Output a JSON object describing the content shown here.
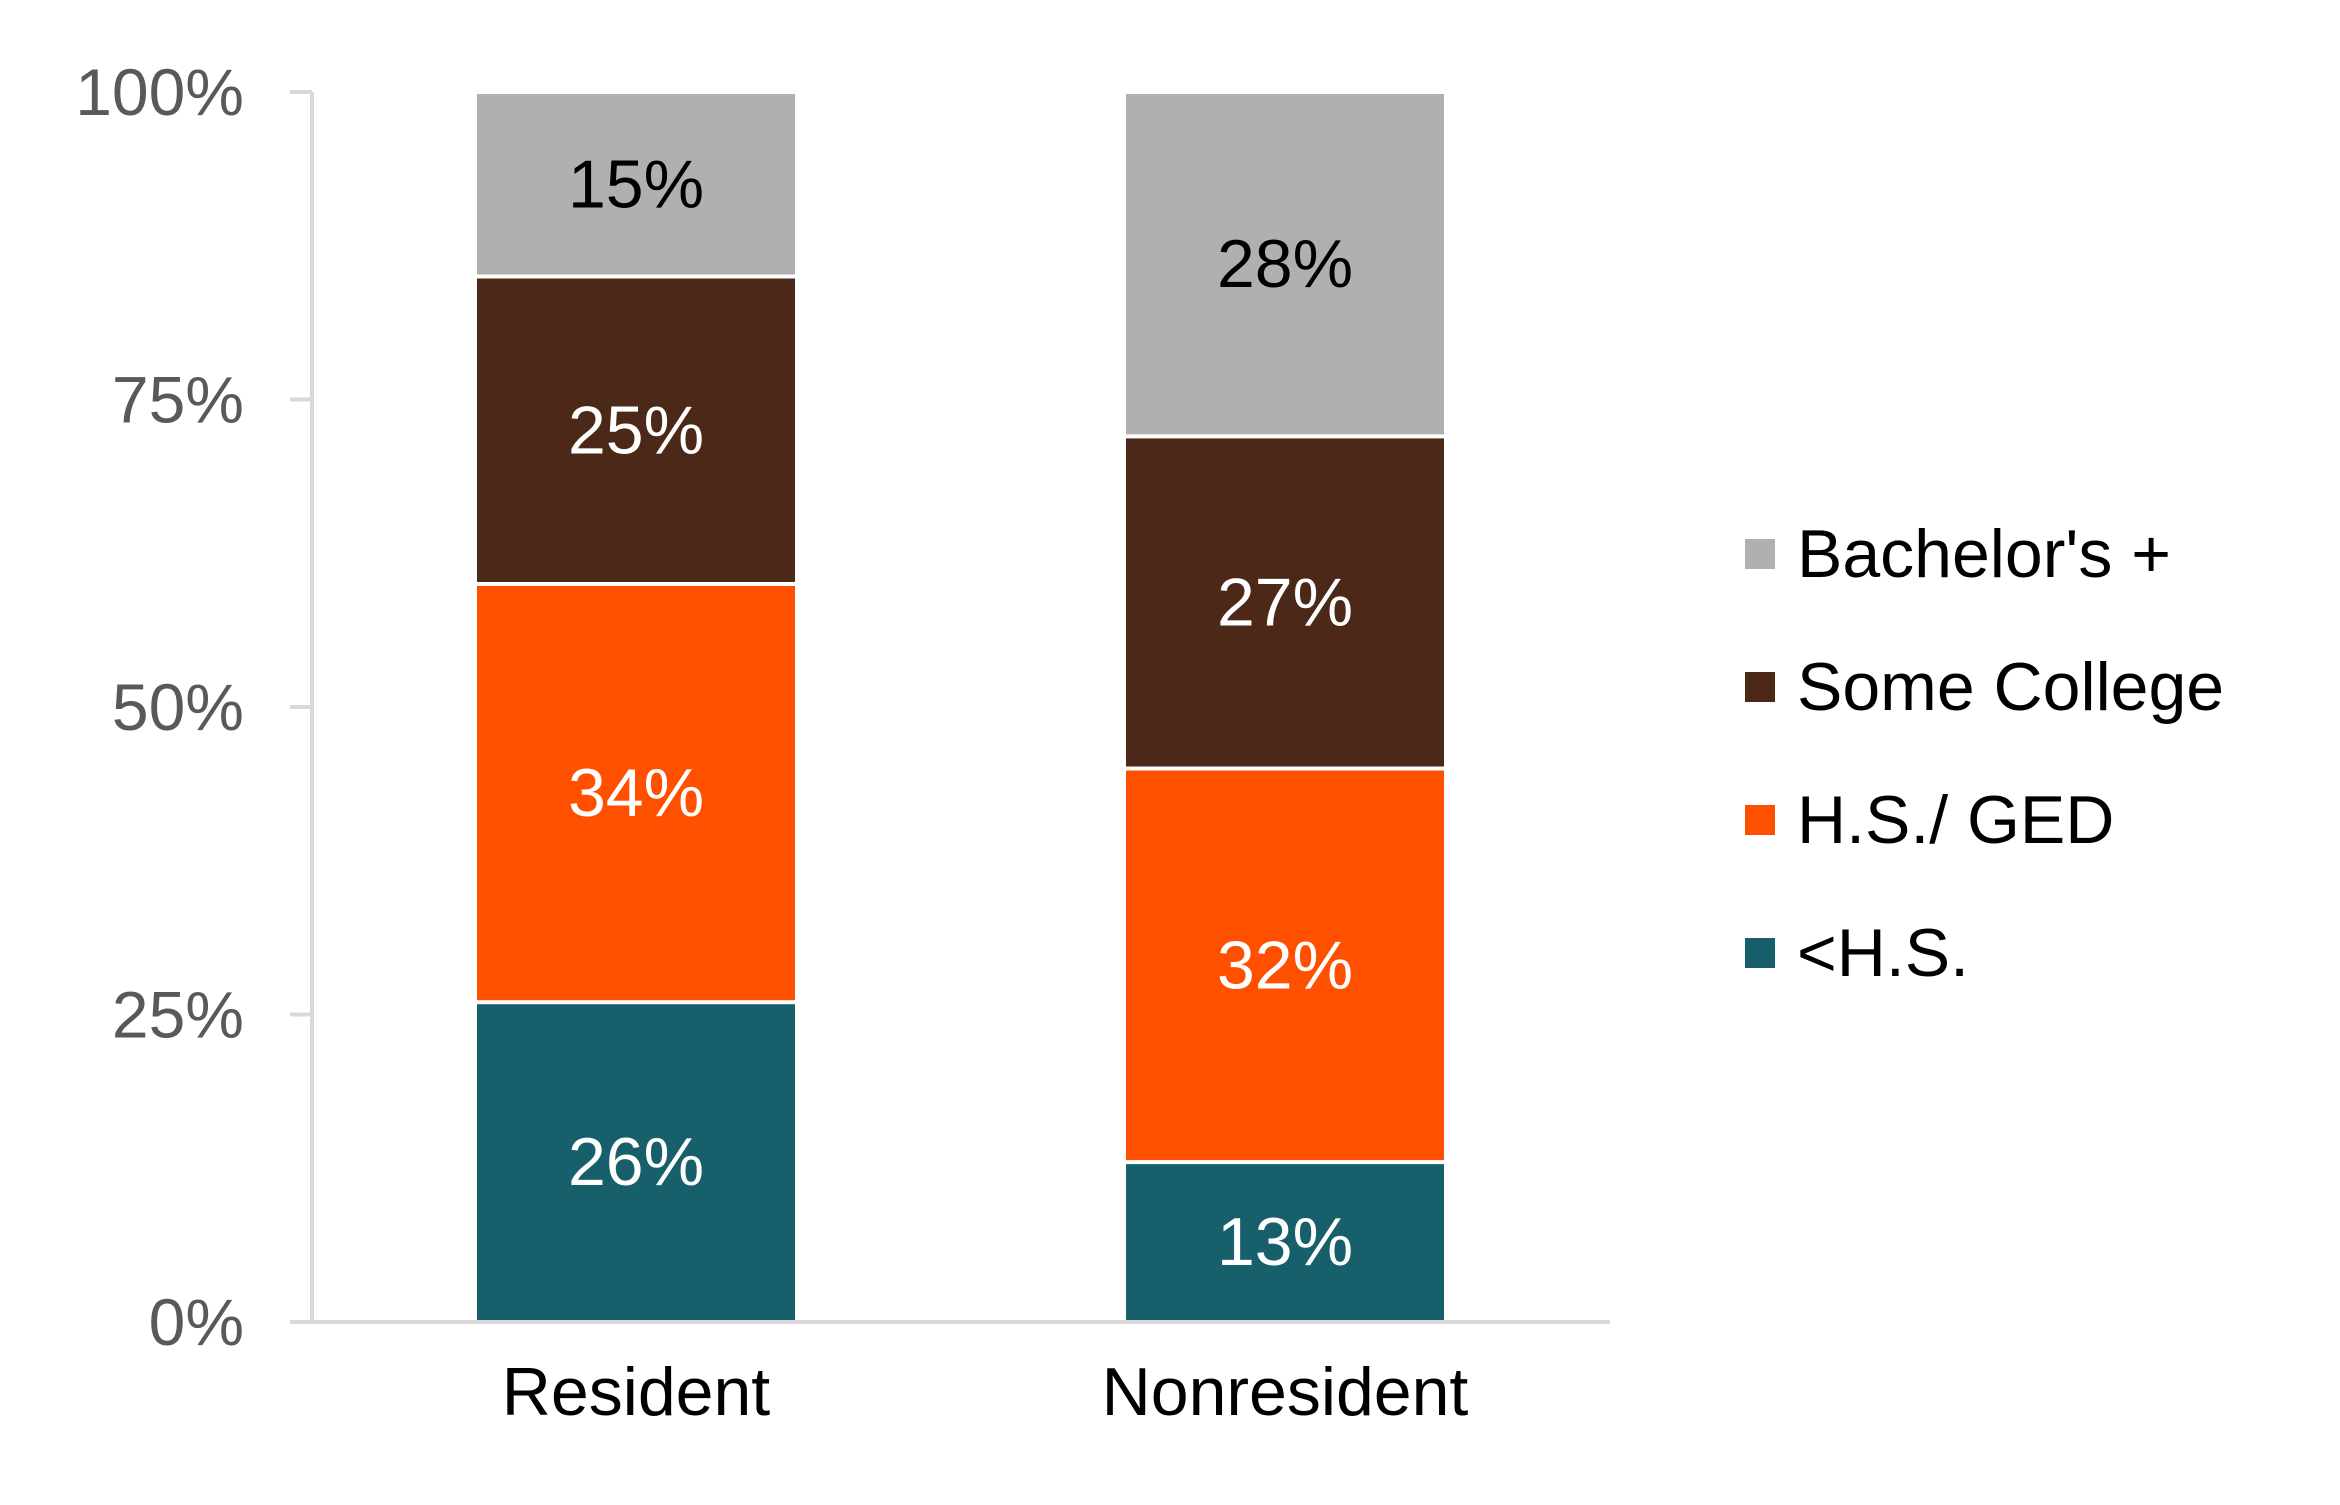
{
  "chart_data": {
    "type": "bar",
    "stacked": true,
    "title": "",
    "xlabel": "",
    "ylabel": "",
    "categories": [
      "Resident",
      "Nonresident"
    ],
    "ylim": [
      0,
      100
    ],
    "y_ticks": [
      "0%",
      "25%",
      "50%",
      "75%",
      "100%"
    ],
    "y_tick_values": [
      0,
      25,
      50,
      75,
      100
    ],
    "grid": false,
    "legend_position": "right",
    "series": [
      {
        "name": "<H.S.",
        "values": [
          26,
          13
        ],
        "labels": [
          "26%",
          "13%"
        ],
        "color": "#17606B",
        "label_color": "#FFFFFF"
      },
      {
        "name": "H.S./ GED",
        "values": [
          34,
          32
        ],
        "labels": [
          "34%",
          "32%"
        ],
        "color": "#FF5000",
        "label_color": "#FFFFFF"
      },
      {
        "name": "Some College",
        "values": [
          25,
          27
        ],
        "labels": [
          "25%",
          "27%"
        ],
        "color": "#4B2818",
        "label_color": "#FFFFFF"
      },
      {
        "name": "Bachelor's +",
        "values": [
          15,
          28
        ],
        "labels": [
          "15%",
          "28%"
        ],
        "color": "#B0B0B0",
        "label_color": "#000000"
      }
    ],
    "axis_color": "#D9D9D9"
  }
}
